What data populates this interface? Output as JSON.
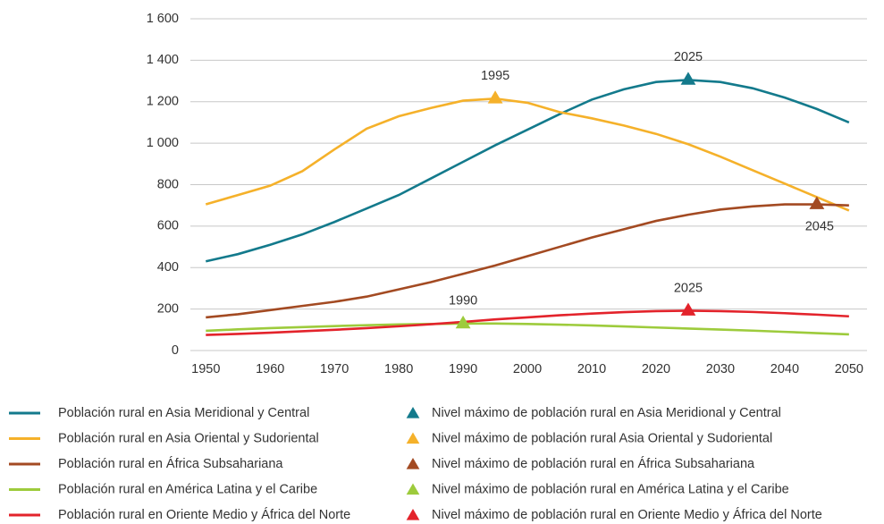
{
  "chart_data": {
    "type": "line",
    "x": [
      1950,
      1955,
      1960,
      1965,
      1970,
      1975,
      1980,
      1985,
      1990,
      1995,
      2000,
      2005,
      2010,
      2015,
      2020,
      2025,
      2030,
      2035,
      2040,
      2045,
      2050
    ],
    "xlim": [
      1947.6,
      2052.8
    ],
    "xticks": [
      1950,
      1960,
      1970,
      1980,
      1990,
      2000,
      2010,
      2020,
      2030,
      2040,
      2050
    ],
    "ylim": [
      0,
      1600
    ],
    "yticks": [
      0,
      200,
      400,
      600,
      800,
      {
        "value": 1000,
        "label": "1 000"
      },
      {
        "value": 1200,
        "label": "1 200"
      },
      {
        "value": 1400,
        "label": "1 400"
      },
      {
        "value": 1600,
        "label": "1 600"
      }
    ],
    "grid": true,
    "series": [
      {
        "name": "Población rural en Asia Meridional y Central",
        "color": "#137a8c",
        "values": [
          430,
          465,
          510,
          560,
          620,
          685,
          750,
          830,
          910,
          990,
          1065,
          1140,
          1210,
          1260,
          1295,
          1305,
          1295,
          1265,
          1220,
          1165,
          1100
        ]
      },
      {
        "name": "Población rural en Asia Oriental y Sudoriental",
        "color": "#f5b12a",
        "values": [
          705,
          750,
          795,
          865,
          970,
          1070,
          1130,
          1170,
          1205,
          1215,
          1195,
          1150,
          1120,
          1085,
          1045,
          995,
          935,
          870,
          805,
          740,
          675
        ]
      },
      {
        "name": "Población rural en África Subsahariana",
        "color": "#a34a22",
        "values": [
          160,
          175,
          195,
          215,
          235,
          260,
          295,
          330,
          370,
          410,
          455,
          500,
          545,
          585,
          625,
          655,
          680,
          695,
          705,
          705,
          700
        ]
      },
      {
        "name": "Población rural en América Latina y el Caribe",
        "color": "#9dcb3c",
        "values": [
          95,
          102,
          108,
          113,
          118,
          122,
          126,
          128,
          130,
          130,
          128,
          125,
          121,
          116,
          111,
          106,
          101,
          96,
          90,
          84,
          78
        ]
      },
      {
        "name": "Población rural en Oriente Medio y África del Norte",
        "color": "#e3232b",
        "values": [
          75,
          80,
          86,
          93,
          100,
          108,
          117,
          127,
          138,
          150,
          160,
          170,
          178,
          185,
          190,
          192,
          190,
          186,
          180,
          173,
          165
        ]
      }
    ],
    "peaks": [
      {
        "name": "Nivel máximo de población rural en Asia Meridional y Central",
        "color": "#137a8c",
        "x": 2025,
        "y": 1305
      },
      {
        "name": "Nivel máximo de población rural Asia Oriental y Sudoriental",
        "color": "#f5b12a",
        "x": 1995,
        "y": 1215
      },
      {
        "name": "Nivel máximo de población rural en África Subsahariana",
        "color": "#a34a22",
        "x": 2045,
        "y": 705
      },
      {
        "name": "Nivel máximo de población rural en América Latina y el Caribe",
        "color": "#9dcb3c",
        "x": 1990,
        "y": 130
      },
      {
        "name": "Nivel máximo de población rural en Oriente Medio y África del Norte",
        "color": "#e3232b",
        "x": 2025,
        "y": 192
      }
    ]
  }
}
